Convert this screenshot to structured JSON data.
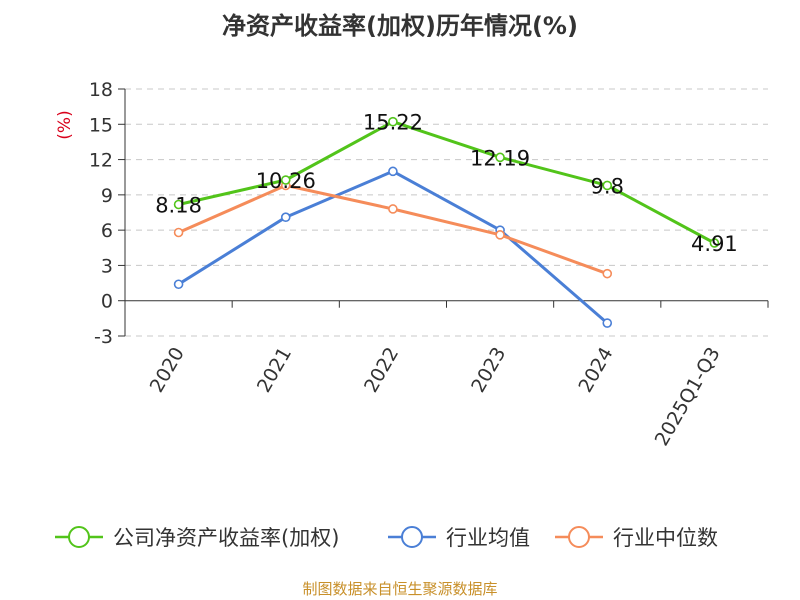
{
  "title": "净资产收益率(加权)历年情况(%)",
  "source": "制图数据来自恒生聚源数据库",
  "chart_data": {
    "type": "line",
    "title": "净资产收益率(加权)历年情况(%)",
    "ylabel": "(%)",
    "ylim": [
      -3,
      18
    ],
    "yticks": [
      18,
      15,
      12,
      9,
      6,
      3,
      0,
      -3
    ],
    "grid": true,
    "legend_position": "bottom",
    "categories": [
      "2020",
      "2021",
      "2022",
      "2023",
      "2024",
      "2025Q1-Q3"
    ],
    "series": [
      {
        "name": "公司净资产收益率(加权)",
        "color": "#52c41a",
        "values": [
          8.18,
          10.26,
          15.22,
          12.19,
          9.8,
          4.91
        ],
        "labels": [
          "8.18",
          "10.26",
          "15.22",
          "12.19",
          "9.8",
          "4.91"
        ]
      },
      {
        "name": "行业均值",
        "color": "#4a7fd6",
        "values": [
          1.4,
          7.1,
          11.0,
          6.0,
          -1.9,
          null
        ]
      },
      {
        "name": "行业中位数",
        "color": "#f58c5a",
        "values": [
          5.8,
          9.8,
          7.8,
          5.6,
          2.3,
          null
        ]
      }
    ]
  }
}
